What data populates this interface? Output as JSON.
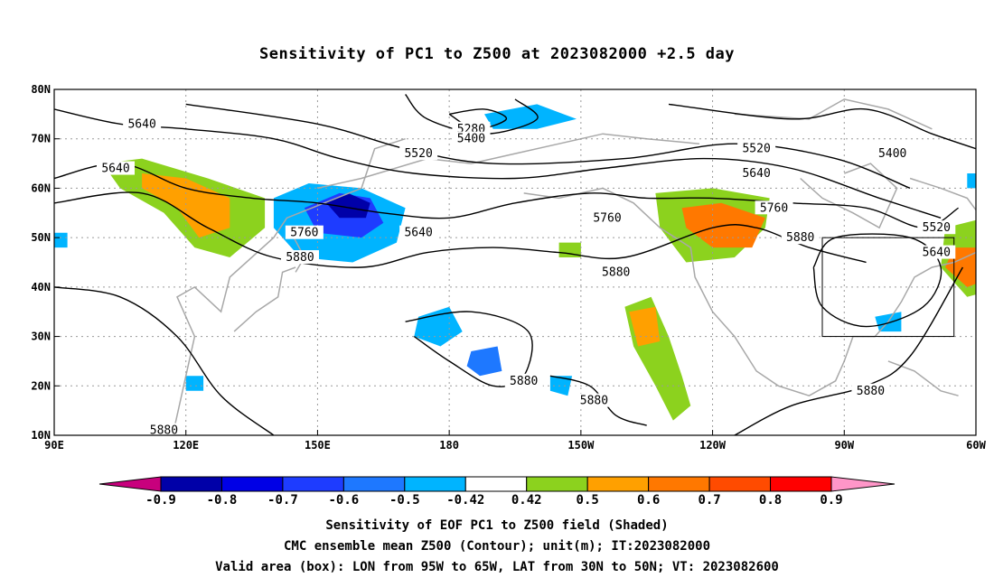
{
  "title": "Sensitivity of PC1 to Z500 at 2023082000 +2.5 day",
  "footer": [
    "Sensitivity of EOF PC1 to Z500 field (Shaded)",
    "CMC ensemble mean Z500 (Contour); unit(m); IT:2023082000",
    "Valid area (box): LON from 95W to 65W, LAT from 30N to 50N; VT: 2023082600"
  ],
  "axes": {
    "lon_range": [
      90,
      300
    ],
    "lat_range": [
      10,
      80
    ],
    "lat_ticks": [
      {
        "value": 80,
        "label": "80N"
      },
      {
        "value": 70,
        "label": "70N"
      },
      {
        "value": 60,
        "label": "60N"
      },
      {
        "value": 50,
        "label": "50N"
      },
      {
        "value": 40,
        "label": "40N"
      },
      {
        "value": 30,
        "label": "30N"
      },
      {
        "value": 20,
        "label": "20N"
      },
      {
        "value": 10,
        "label": "10N"
      }
    ],
    "lon_ticks": [
      {
        "value": 90,
        "label": "90E"
      },
      {
        "value": 120,
        "label": "120E"
      },
      {
        "value": 150,
        "label": "150E"
      },
      {
        "value": 180,
        "label": "180"
      },
      {
        "value": 210,
        "label": "150W"
      },
      {
        "value": 240,
        "label": "120W"
      },
      {
        "value": 270,
        "label": "90W"
      },
      {
        "value": 300,
        "label": "60W"
      }
    ],
    "grid": true
  },
  "valid_box": {
    "lon": [
      265,
      295
    ],
    "lat": [
      30,
      50
    ]
  },
  "colorbar": {
    "labels": [
      "-0.9",
      "-0.8",
      "-0.7",
      "-0.6",
      "-0.5",
      "-0.42",
      "0.42",
      "0.5",
      "0.6",
      "0.7",
      "0.8",
      "0.9"
    ],
    "colors": [
      "#0000a8",
      "#0000e6",
      "#1e3cff",
      "#1e78ff",
      "#00b4ff",
      "#ffffff",
      "#8cd21e",
      "#ffa000",
      "#ff7800",
      "#ff4b00",
      "#ff0000"
    ],
    "low_end": "#c8007d",
    "high_end": "#ff96c8"
  },
  "contour_labels": [
    {
      "text": "5640",
      "lon": 110,
      "lat": 73
    },
    {
      "text": "5640",
      "lon": 104,
      "lat": 64
    },
    {
      "text": "5280",
      "lon": 185,
      "lat": 72
    },
    {
      "text": "5400",
      "lon": 185,
      "lat": 70
    },
    {
      "text": "5520",
      "lon": 173,
      "lat": 67
    },
    {
      "text": "5520",
      "lon": 250,
      "lat": 68
    },
    {
      "text": "5400",
      "lon": 281,
      "lat": 67
    },
    {
      "text": "5640",
      "lon": 250,
      "lat": 63
    },
    {
      "text": "5640",
      "lon": 173,
      "lat": 51
    },
    {
      "text": "5760",
      "lon": 147,
      "lat": 51
    },
    {
      "text": "5880",
      "lon": 146,
      "lat": 46
    },
    {
      "text": "5760",
      "lon": 216,
      "lat": 54
    },
    {
      "text": "5760",
      "lon": 254,
      "lat": 56
    },
    {
      "text": "5880",
      "lon": 260,
      "lat": 50
    },
    {
      "text": "5880",
      "lon": 218,
      "lat": 43
    },
    {
      "text": "5520",
      "lon": 291,
      "lat": 52
    },
    {
      "text": "5640",
      "lon": 291,
      "lat": 47
    },
    {
      "text": "5880",
      "lon": 197,
      "lat": 21
    },
    {
      "text": "5880",
      "lon": 213,
      "lat": 17
    },
    {
      "text": "5880",
      "lon": 276,
      "lat": 19
    },
    {
      "text": "5880",
      "lon": 115,
      "lat": 11
    }
  ],
  "contour_lines": [
    [
      [
        90,
        57
      ],
      [
        110,
        59
      ],
      [
        125,
        52
      ],
      [
        140,
        46
      ],
      [
        160,
        44
      ],
      [
        175,
        47
      ],
      [
        190,
        48
      ],
      [
        205,
        47
      ],
      [
        220,
        46
      ],
      [
        240,
        52
      ],
      [
        250,
        52
      ],
      [
        262,
        48
      ],
      [
        275,
        45
      ]
    ],
    [
      [
        90,
        62
      ],
      [
        105,
        65
      ],
      [
        120,
        60
      ],
      [
        135,
        58
      ],
      [
        150,
        57
      ],
      [
        165,
        55
      ],
      [
        180,
        54
      ],
      [
        195,
        57
      ],
      [
        212,
        59
      ],
      [
        225,
        58
      ],
      [
        240,
        58
      ],
      [
        258,
        57
      ],
      [
        275,
        56
      ],
      [
        288,
        52
      ],
      [
        296,
        56
      ]
    ],
    [
      [
        90,
        76
      ],
      [
        105,
        73
      ],
      [
        120,
        72
      ],
      [
        140,
        70
      ],
      [
        155,
        66
      ],
      [
        172,
        63
      ],
      [
        195,
        62
      ],
      [
        215,
        64
      ],
      [
        238,
        66
      ],
      [
        258,
        64
      ],
      [
        278,
        58
      ],
      [
        292,
        54
      ]
    ],
    [
      [
        120,
        77
      ],
      [
        150,
        73
      ],
      [
        170,
        68
      ],
      [
        190,
        65
      ],
      [
        220,
        66
      ],
      [
        245,
        69
      ],
      [
        268,
        66
      ],
      [
        285,
        60
      ]
    ],
    [
      [
        170,
        79
      ],
      [
        175,
        74
      ],
      [
        188,
        71
      ],
      [
        200,
        74
      ],
      [
        195,
        78
      ]
    ],
    [
      [
        180,
        75
      ],
      [
        186,
        72
      ],
      [
        193,
        74
      ],
      [
        188,
        76
      ],
      [
        180,
        75
      ]
    ],
    [
      [
        263,
        44
      ],
      [
        268,
        50
      ],
      [
        285,
        50
      ],
      [
        292,
        44
      ],
      [
        288,
        36
      ],
      [
        275,
        32
      ],
      [
        265,
        36
      ],
      [
        263,
        44
      ]
    ],
    [
      [
        230,
        77
      ],
      [
        258,
        74
      ],
      [
        275,
        76
      ],
      [
        290,
        71
      ],
      [
        300,
        68
      ]
    ],
    [
      [
        90,
        40
      ],
      [
        105,
        38
      ],
      [
        118,
        30
      ],
      [
        128,
        18
      ],
      [
        140,
        10
      ]
    ],
    [
      [
        170,
        33
      ],
      [
        185,
        35
      ],
      [
        198,
        31
      ],
      [
        197,
        22
      ],
      [
        190,
        20
      ],
      [
        180,
        25
      ],
      [
        172,
        30
      ]
    ],
    [
      [
        203,
        22
      ],
      [
        212,
        20
      ],
      [
        218,
        14
      ],
      [
        225,
        12
      ]
    ],
    [
      [
        245,
        10
      ],
      [
        258,
        16
      ],
      [
        275,
        20
      ],
      [
        285,
        26
      ],
      [
        297,
        44
      ]
    ]
  ],
  "shaded_regions": [
    {
      "color_index": 4,
      "points": [
        [
          140,
          58
        ],
        [
          148,
          61
        ],
        [
          160,
          60
        ],
        [
          170,
          56
        ],
        [
          168,
          49
        ],
        [
          158,
          45
        ],
        [
          146,
          46
        ],
        [
          140,
          52
        ]
      ]
    },
    {
      "color_index": 2,
      "points": [
        [
          147,
          56
        ],
        [
          155,
          59
        ],
        [
          162,
          58
        ],
        [
          165,
          53
        ],
        [
          160,
          50
        ],
        [
          150,
          51
        ]
      ]
    },
    {
      "color_index": 0,
      "points": [
        [
          152,
          57
        ],
        [
          157,
          59
        ],
        [
          162,
          57
        ],
        [
          161,
          54
        ],
        [
          155,
          54
        ]
      ]
    },
    {
      "color_index": 4,
      "points": [
        [
          188,
          75
        ],
        [
          200,
          77
        ],
        [
          209,
          74
        ],
        [
          200,
          72
        ],
        [
          190,
          72
        ]
      ]
    },
    {
      "color_index": 4,
      "points": [
        [
          173,
          34
        ],
        [
          180,
          36
        ],
        [
          183,
          31
        ],
        [
          178,
          28
        ],
        [
          172,
          30
        ]
      ]
    },
    {
      "color_index": 3,
      "points": [
        [
          185,
          27
        ],
        [
          191,
          28
        ],
        [
          192,
          23
        ],
        [
          187,
          22
        ],
        [
          184,
          24
        ]
      ]
    },
    {
      "color_index": 4,
      "points": [
        [
          120,
          22
        ],
        [
          124,
          22
        ],
        [
          124,
          19
        ],
        [
          120,
          19
        ]
      ]
    },
    {
      "color_index": 4,
      "points": [
        [
          203,
          22
        ],
        [
          208,
          22
        ],
        [
          207,
          18
        ],
        [
          203,
          19
        ]
      ]
    },
    {
      "color_index": 4,
      "points": [
        [
          90,
          51
        ],
        [
          93,
          51
        ],
        [
          93,
          48
        ],
        [
          90,
          48
        ]
      ]
    },
    {
      "color_index": 4,
      "points": [
        [
          298,
          63
        ],
        [
          304,
          63
        ],
        [
          304,
          60
        ],
        [
          298,
          60
        ]
      ]
    },
    {
      "color_index": 4,
      "points": [
        [
          277,
          34
        ],
        [
          283,
          35
        ],
        [
          283,
          31
        ],
        [
          278,
          31
        ]
      ]
    },
    {
      "color_index": 6,
      "points": [
        [
          101,
          65
        ],
        [
          110,
          66
        ],
        [
          125,
          62
        ],
        [
          138,
          58
        ],
        [
          138,
          52
        ],
        [
          130,
          46
        ],
        [
          122,
          48
        ],
        [
          115,
          55
        ],
        [
          105,
          60
        ]
      ]
    },
    {
      "color_index": 7,
      "points": [
        [
          110,
          63
        ],
        [
          120,
          62
        ],
        [
          130,
          58
        ],
        [
          130,
          52
        ],
        [
          123,
          50
        ],
        [
          118,
          56
        ],
        [
          110,
          60
        ]
      ]
    },
    {
      "color_index": 6,
      "points": [
        [
          227,
          59
        ],
        [
          240,
          60
        ],
        [
          253,
          58
        ],
        [
          252,
          52
        ],
        [
          245,
          46
        ],
        [
          234,
          45
        ],
        [
          228,
          52
        ]
      ]
    },
    {
      "color_index": 8,
      "points": [
        [
          233,
          56
        ],
        [
          242,
          57
        ],
        [
          252,
          54
        ],
        [
          249,
          48
        ],
        [
          240,
          48
        ],
        [
          234,
          52
        ]
      ]
    },
    {
      "color_index": 6,
      "points": [
        [
          205,
          49
        ],
        [
          210,
          49
        ],
        [
          210,
          46
        ],
        [
          205,
          46
        ]
      ]
    },
    {
      "color_index": 6,
      "points": [
        [
          220,
          36
        ],
        [
          226,
          38
        ],
        [
          230,
          30
        ],
        [
          233,
          22
        ],
        [
          235,
          16
        ],
        [
          231,
          13
        ],
        [
          227,
          20
        ],
        [
          222,
          28
        ]
      ]
    },
    {
      "color_index": 7,
      "points": [
        [
          221,
          35
        ],
        [
          227,
          36
        ],
        [
          228,
          29
        ],
        [
          223,
          28
        ]
      ]
    },
    {
      "color_index": 6,
      "points": [
        [
          293,
          52
        ],
        [
          302,
          54
        ],
        [
          308,
          48
        ],
        [
          306,
          40
        ],
        [
          298,
          38
        ],
        [
          292,
          44
        ]
      ]
    },
    {
      "color_index": 8,
      "points": [
        [
          295,
          48
        ],
        [
          302,
          48
        ],
        [
          304,
          42
        ],
        [
          298,
          40
        ],
        [
          293,
          44
        ]
      ]
    }
  ],
  "coastlines": [
    [
      [
        117,
        10
      ],
      [
        120,
        22
      ],
      [
        122,
        30
      ],
      [
        118,
        38
      ],
      [
        122,
        40
      ],
      [
        128,
        35
      ],
      [
        130,
        42
      ],
      [
        140,
        50
      ],
      [
        143,
        54
      ],
      [
        160,
        60
      ],
      [
        163,
        68
      ],
      [
        170,
        70
      ]
    ],
    [
      [
        131,
        31
      ],
      [
        136,
        35
      ],
      [
        141,
        38
      ],
      [
        142,
        43
      ],
      [
        145,
        44
      ]
    ],
    [
      [
        145,
        43
      ],
      [
        147,
        46
      ],
      [
        144,
        51
      ]
    ],
    [
      [
        150,
        60
      ],
      [
        160,
        62
      ],
      [
        175,
        66
      ],
      [
        185,
        65
      ],
      [
        195,
        67
      ],
      [
        205,
        69
      ],
      [
        215,
        71
      ],
      [
        225,
        70
      ],
      [
        237,
        69
      ]
    ],
    [
      [
        197,
        59
      ],
      [
        205,
        58
      ],
      [
        215,
        60
      ],
      [
        222,
        57
      ],
      [
        228,
        52
      ],
      [
        235,
        48
      ],
      [
        236,
        42
      ],
      [
        240,
        35
      ],
      [
        245,
        30
      ],
      [
        250,
        23
      ],
      [
        255,
        20
      ],
      [
        262,
        18
      ],
      [
        268,
        21
      ],
      [
        270,
        25
      ],
      [
        272,
        30
      ],
      [
        277,
        30
      ],
      [
        280,
        33
      ],
      [
        283,
        37
      ],
      [
        286,
        42
      ],
      [
        290,
        44
      ],
      [
        295,
        45
      ],
      [
        300,
        47
      ]
    ],
    [
      [
        260,
        62
      ],
      [
        265,
        58
      ],
      [
        272,
        55
      ],
      [
        278,
        52
      ],
      [
        282,
        60
      ],
      [
        276,
        65
      ],
      [
        270,
        63
      ]
    ],
    [
      [
        280,
        25
      ],
      [
        286,
        23
      ],
      [
        292,
        19
      ],
      [
        296,
        18
      ]
    ],
    [
      [
        300,
        47
      ],
      [
        303,
        52
      ],
      [
        298,
        58
      ],
      [
        292,
        60
      ],
      [
        285,
        62
      ]
    ],
    [
      [
        245,
        75
      ],
      [
        262,
        74
      ],
      [
        270,
        78
      ],
      [
        280,
        76
      ],
      [
        290,
        72
      ]
    ]
  ]
}
